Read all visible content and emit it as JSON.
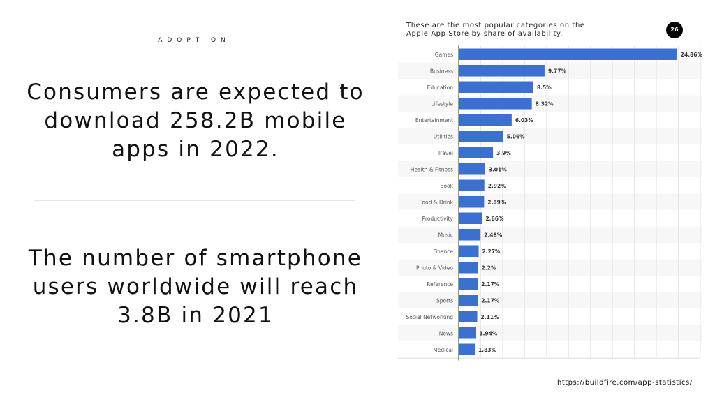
{
  "slide": {
    "eyebrow": "ADOPTION",
    "headline_1": "Consumers are expected to download 258.2B mobile apps in 2022.",
    "headline_2": "The number of smartphone users worldwide will reach 3.8B in 2021",
    "page_number": "26",
    "source_url": "https://buildfire.com/app-statistics/"
  },
  "colors": {
    "bar": "#3b6fd0",
    "grid": "#e6e6e6",
    "stripe": "#f7f7f7"
  },
  "chart_data": {
    "type": "bar",
    "orientation": "horizontal",
    "title": "These are the most popular categories on the Apple App Store by share of availability.",
    "xlabel": "",
    "ylabel": "",
    "unit": "%",
    "xlim": [
      0,
      27.5
    ],
    "grid": true,
    "categories": [
      "Games",
      "Business",
      "Education",
      "Lifestyle",
      "Entertainment",
      "Utilities",
      "Travel",
      "Health & Fitness",
      "Book",
      "Food & Drink",
      "Productivity",
      "Music",
      "Finance",
      "Photo & Video",
      "Reference",
      "Sports",
      "Social Networking",
      "News",
      "Medical"
    ],
    "values": [
      24.86,
      9.77,
      8.5,
      8.32,
      6.03,
      5.06,
      3.9,
      3.01,
      2.92,
      2.89,
      2.66,
      2.48,
      2.27,
      2.2,
      2.17,
      2.17,
      2.11,
      1.94,
      1.83
    ],
    "labels": [
      "24.86%",
      "9.77%",
      "8.5%",
      "8.32%",
      "6.03%",
      "5.06%",
      "3.9%",
      "3.01%",
      "2.92%",
      "2.89%",
      "2.66%",
      "2.48%",
      "2.27%",
      "2.2%",
      "2.17%",
      "2.17%",
      "2.11%",
      "1.94%",
      "1.83%"
    ]
  }
}
